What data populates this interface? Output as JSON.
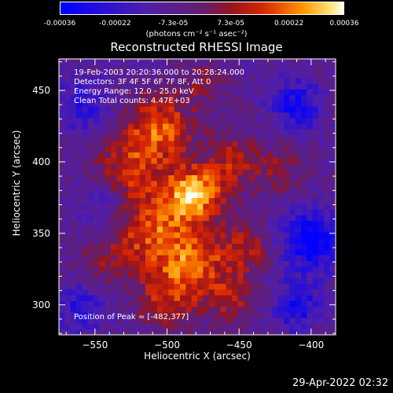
{
  "chart_data": {
    "type": "heatmap",
    "title": "Reconstructed RHESSI Image",
    "xlabel": "Heliocentric X (arcsec)",
    "ylabel": "Heliocentric Y (arcsec)",
    "xlim": [
      -575,
      -383
    ],
    "ylim": [
      279,
      472
    ],
    "x_ticks": [
      -550,
      -500,
      -450,
      -400
    ],
    "y_ticks": [
      300,
      350,
      400,
      450
    ],
    "colorbar": {
      "min": -0.00036,
      "max": 0.00036,
      "tick_values": [
        -0.00036,
        -0.00022,
        -7.3e-05,
        7.3e-05,
        0.00022,
        0.00036
      ],
      "tick_labels": [
        "-0.00036",
        "-0.00022",
        "-7.3e-05",
        "7.3e-05",
        "0.00022",
        "0.00036"
      ],
      "units": "(photons cm⁻² s⁻¹ asec⁻²)"
    },
    "annotations": [
      "19-Feb-2003 20:20:36.000 to 20:28:24.000",
      "Detectors: 3F 4F 5F 6F 7F 8F, Att 0",
      "Energy Range: 12.0 - 25.0 keV",
      "Clean     Total counts: 4.47E+03"
    ],
    "peak_label": "Position of Peak = [-482,377]",
    "peak": [
      -482,
      377
    ],
    "emission_sources": [
      {
        "x": -482,
        "y": 377,
        "amplitude": 0.00036,
        "sigma": 14
      },
      {
        "x": -505,
        "y": 425,
        "amplitude": 0.00028,
        "sigma": 16
      },
      {
        "x": -525,
        "y": 395,
        "amplitude": 0.00022,
        "sigma": 17
      },
      {
        "x": -510,
        "y": 350,
        "amplitude": 0.00026,
        "sigma": 18
      },
      {
        "x": -480,
        "y": 330,
        "amplitude": 0.00024,
        "sigma": 16
      },
      {
        "x": -500,
        "y": 305,
        "amplitude": 0.0002,
        "sigma": 15
      },
      {
        "x": -455,
        "y": 400,
        "amplitude": 0.00018,
        "sigma": 15
      },
      {
        "x": -445,
        "y": 340,
        "amplitude": 0.00017,
        "sigma": 13
      },
      {
        "x": -455,
        "y": 305,
        "amplitude": 0.00016,
        "sigma": 13
      },
      {
        "x": -420,
        "y": 395,
        "amplitude": 0.00012,
        "sigma": 12
      },
      {
        "x": -545,
        "y": 330,
        "amplitude": 0.00011,
        "sigma": 14
      },
      {
        "x": -475,
        "y": 455,
        "amplitude": 0.00012,
        "sigma": 12
      },
      {
        "x": -400,
        "y": 345,
        "amplitude": -0.0003,
        "sigma": 14
      },
      {
        "x": -410,
        "y": 440,
        "amplitude": -0.00022,
        "sigma": 12
      },
      {
        "x": -560,
        "y": 440,
        "amplitude": -0.00015,
        "sigma": 13
      },
      {
        "x": -410,
        "y": 300,
        "amplitude": -0.0002,
        "sigma": 12
      },
      {
        "x": -560,
        "y": 300,
        "amplitude": -0.00016,
        "sigma": 12
      },
      {
        "x": -545,
        "y": 370,
        "amplitude": -0.00012,
        "sigma": 11
      }
    ],
    "background_level": -9e-05
  },
  "footer": {
    "timestamp": "29-Apr-2022 02:32"
  }
}
